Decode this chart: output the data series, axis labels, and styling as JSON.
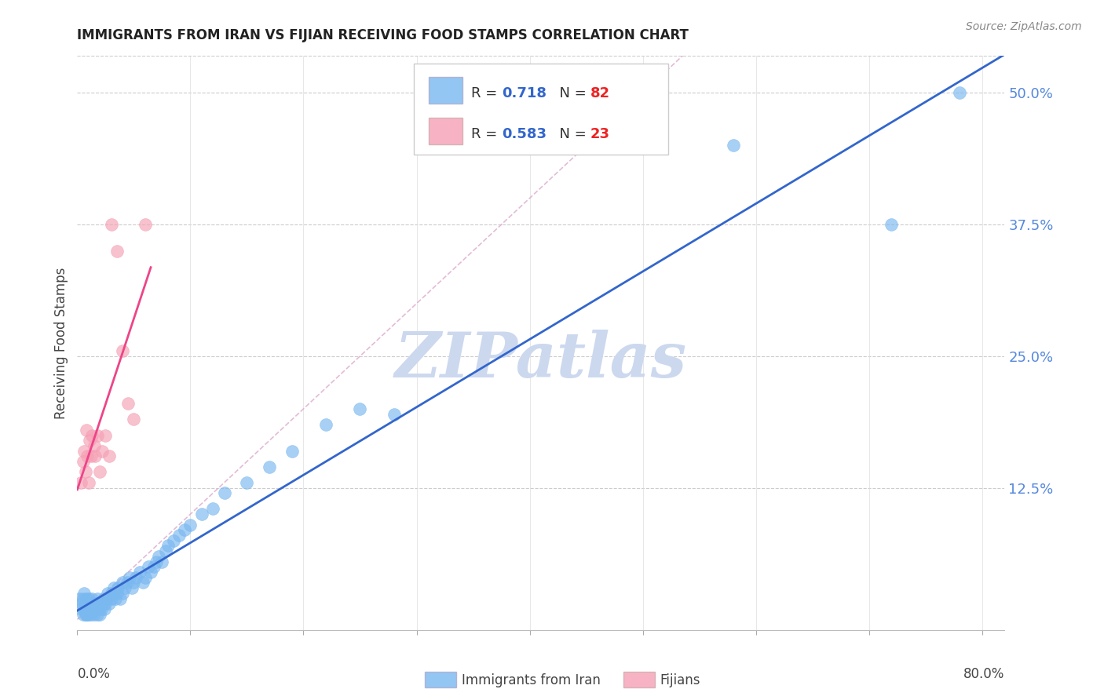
{
  "title": "IMMIGRANTS FROM IRAN VS FIJIAN RECEIVING FOOD STAMPS CORRELATION CHART",
  "source": "Source: ZipAtlas.com",
  "ylabel": "Receiving Food Stamps",
  "yticks": [
    0.0,
    0.125,
    0.25,
    0.375,
    0.5
  ],
  "ytick_labels": [
    "",
    "12.5%",
    "25.0%",
    "37.5%",
    "50.0%"
  ],
  "xlim": [
    0.0,
    0.82
  ],
  "ylim": [
    -0.01,
    0.535
  ],
  "iran_color": "#7ab8f0",
  "fijian_color": "#f5a0b5",
  "iran_line_color": "#3366cc",
  "fijian_line_color": "#ee4488",
  "diag_color": "#ddaacc",
  "watermark": "ZIPatlas",
  "watermark_color": "#ccd8ee",
  "legend_v1": "0.718",
  "legend_nv1": "82",
  "legend_v2": "0.583",
  "legend_nv2": "23",
  "iran_scatter_x": [
    0.002,
    0.003,
    0.004,
    0.005,
    0.005,
    0.006,
    0.006,
    0.007,
    0.007,
    0.008,
    0.008,
    0.008,
    0.009,
    0.009,
    0.01,
    0.01,
    0.01,
    0.01,
    0.012,
    0.012,
    0.013,
    0.013,
    0.014,
    0.015,
    0.015,
    0.016,
    0.017,
    0.018,
    0.018,
    0.019,
    0.02,
    0.02,
    0.021,
    0.022,
    0.023,
    0.024,
    0.025,
    0.026,
    0.027,
    0.028,
    0.03,
    0.03,
    0.032,
    0.034,
    0.035,
    0.036,
    0.038,
    0.04,
    0.04,
    0.042,
    0.044,
    0.046,
    0.048,
    0.05,
    0.052,
    0.055,
    0.058,
    0.06,
    0.063,
    0.065,
    0.068,
    0.07,
    0.072,
    0.075,
    0.078,
    0.08,
    0.085,
    0.09,
    0.095,
    0.1,
    0.11,
    0.12,
    0.13,
    0.15,
    0.17,
    0.19,
    0.22,
    0.25,
    0.28,
    0.58,
    0.72,
    0.78
  ],
  "iran_scatter_y": [
    0.02,
    0.01,
    0.015,
    0.005,
    0.02,
    0.01,
    0.025,
    0.005,
    0.015,
    0.005,
    0.01,
    0.02,
    0.005,
    0.015,
    0.005,
    0.01,
    0.015,
    0.02,
    0.005,
    0.01,
    0.015,
    0.02,
    0.01,
    0.005,
    0.015,
    0.01,
    0.015,
    0.005,
    0.02,
    0.01,
    0.005,
    0.015,
    0.01,
    0.015,
    0.02,
    0.01,
    0.015,
    0.02,
    0.025,
    0.015,
    0.02,
    0.025,
    0.03,
    0.02,
    0.025,
    0.03,
    0.02,
    0.025,
    0.035,
    0.03,
    0.035,
    0.04,
    0.03,
    0.035,
    0.04,
    0.045,
    0.035,
    0.04,
    0.05,
    0.045,
    0.05,
    0.055,
    0.06,
    0.055,
    0.065,
    0.07,
    0.075,
    0.08,
    0.085,
    0.09,
    0.1,
    0.105,
    0.12,
    0.13,
    0.145,
    0.16,
    0.185,
    0.2,
    0.195,
    0.45,
    0.375,
    0.5
  ],
  "fijian_scatter_x": [
    0.003,
    0.005,
    0.006,
    0.007,
    0.008,
    0.009,
    0.01,
    0.011,
    0.012,
    0.013,
    0.015,
    0.016,
    0.018,
    0.02,
    0.022,
    0.025,
    0.028,
    0.03,
    0.035,
    0.04,
    0.045,
    0.05,
    0.06
  ],
  "fijian_scatter_y": [
    0.13,
    0.15,
    0.16,
    0.14,
    0.18,
    0.155,
    0.13,
    0.17,
    0.155,
    0.175,
    0.165,
    0.155,
    0.175,
    0.14,
    0.16,
    0.175,
    0.155,
    0.375,
    0.35,
    0.255,
    0.205,
    0.19,
    0.375
  ]
}
